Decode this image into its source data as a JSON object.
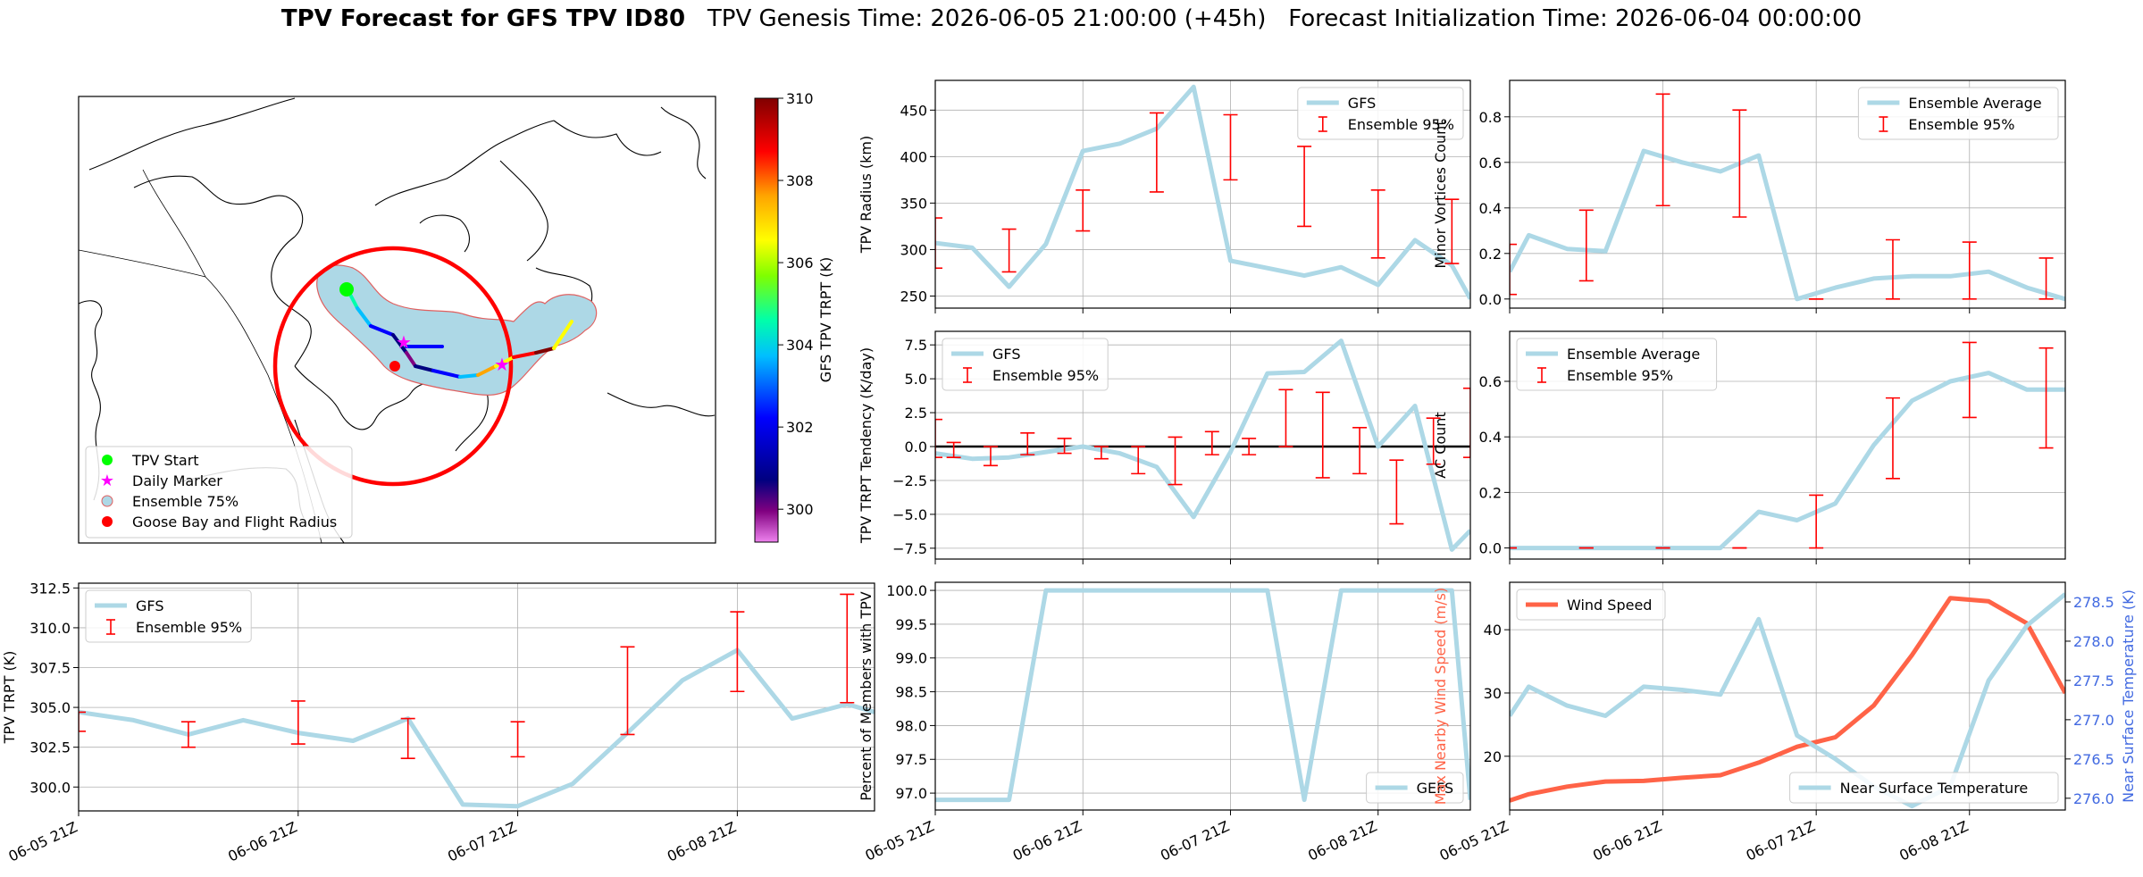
{
  "title": {
    "bold": "TPV Forecast for GFS TPV ID80",
    "genesis": "TPV Genesis Time: 2026-06-05 21:00:00 (+45h)",
    "init": "Forecast Initialization Time: 2026-06-04 00:00:00"
  },
  "colors": {
    "main_line": "#add8e6",
    "error_bar": "#ff0000",
    "wind": "#ff6347",
    "temp_axis": "#4169e1",
    "ensemble_fill": "#add8e6",
    "circle": "#ff0000",
    "tpv_start": "#00ff00",
    "daily_marker": "#ff00ff"
  },
  "map": {
    "legend": [
      "TPV Start",
      "Daily Marker",
      "Ensemble 75%",
      "Goose Bay and Flight Radius"
    ],
    "colorbar": {
      "label": "GFS TPV TRPT (K)",
      "ticks": [
        "310",
        "308",
        "306",
        "304",
        "302",
        "300"
      ],
      "range": [
        299.2,
        310.0
      ],
      "colormap": "jet"
    }
  },
  "chart_data": [
    {
      "id": "trpt",
      "type": "line",
      "ylabel": "TPV TRPT (K)",
      "xlim": [
        0,
        87
      ],
      "ylim": [
        298.5,
        312.8
      ],
      "yticks": [
        300.0,
        302.5,
        305.0,
        307.5,
        310.0,
        312.5
      ],
      "ytick_labels": [
        "300.0",
        "302.5",
        "305.0",
        "307.5",
        "310.0",
        "312.5"
      ],
      "xticks": [
        0,
        24,
        48,
        72
      ],
      "xtick_labels": [
        "06-05 21Z",
        "06-06 21Z",
        "06-07 21Z",
        "06-08 21Z"
      ],
      "legend_loc": "upper-left",
      "series": [
        {
          "name": "GFS",
          "kind": "line",
          "x": [
            0,
            6,
            12,
            18,
            24,
            30,
            36,
            42,
            48,
            54,
            60,
            66,
            72,
            78,
            84,
            87
          ],
          "y": [
            304.7,
            304.2,
            303.3,
            304.2,
            303.4,
            302.9,
            304.3,
            298.9,
            298.8,
            300.2,
            303.4,
            306.7,
            308.6,
            304.3,
            305.2,
            304.7
          ]
        },
        {
          "name": "Ensemble 95%",
          "kind": "errorbar",
          "x": [
            0,
            12,
            24,
            36,
            48,
            60,
            72,
            84
          ],
          "low": [
            303.5,
            302.5,
            302.7,
            301.8,
            301.9,
            303.3,
            306.0,
            305.3
          ],
          "high": [
            304.7,
            304.1,
            305.4,
            304.3,
            304.1,
            308.8,
            311.0,
            312.1
          ]
        }
      ]
    },
    {
      "id": "radius",
      "type": "line",
      "ylabel": "TPV Radius (km)",
      "xlim": [
        0,
        87
      ],
      "ylim": [
        237,
        482
      ],
      "yticks": [
        250,
        300,
        350,
        400,
        450
      ],
      "ytick_labels": [
        "250",
        "300",
        "350",
        "400",
        "450"
      ],
      "xticks": [
        0,
        24,
        48,
        72
      ],
      "legend_loc": "upper-right",
      "series": [
        {
          "name": "GFS",
          "kind": "line",
          "x": [
            0,
            6,
            12,
            18,
            24,
            30,
            36,
            42,
            48,
            54,
            60,
            66,
            72,
            78,
            84,
            87
          ],
          "y": [
            307,
            302,
            260,
            306,
            406,
            414,
            430,
            475,
            288,
            280,
            272,
            281,
            262,
            310,
            283,
            247
          ]
        },
        {
          "name": "Ensemble 95%",
          "kind": "errorbar",
          "x": [
            0,
            12,
            24,
            36,
            48,
            60,
            72,
            84
          ],
          "low": [
            280,
            276,
            320,
            362,
            375,
            325,
            291,
            285
          ],
          "high": [
            334,
            322,
            364,
            447,
            445,
            411,
            364,
            354
          ]
        }
      ]
    },
    {
      "id": "tendency",
      "type": "line",
      "ylabel": "TPV TRPT Tendency (K/day)",
      "xlim": [
        0,
        87
      ],
      "ylim": [
        -8.3,
        8.5
      ],
      "yticks": [
        -7.5,
        -5.0,
        -2.5,
        0.0,
        2.5,
        5.0,
        7.5
      ],
      "ytick_labels": [
        "−7.5",
        "−5.0",
        "−2.5",
        "0.0",
        "2.5",
        "5.0",
        "7.5"
      ],
      "xticks": [
        0,
        24,
        48,
        72
      ],
      "hline": 0,
      "legend_loc": "upper-left",
      "series": [
        {
          "name": "GFS",
          "kind": "line",
          "x": [
            0,
            6,
            12,
            18,
            24,
            30,
            36,
            42,
            48,
            54,
            60,
            66,
            72,
            78,
            84,
            87
          ],
          "y": [
            -0.5,
            -0.9,
            -0.8,
            -0.4,
            0.0,
            -0.5,
            -1.5,
            -5.2,
            -0.4,
            5.4,
            5.5,
            7.8,
            0.0,
            3.0,
            -7.6,
            -6.2
          ]
        },
        {
          "name": "Ensemble 95%",
          "kind": "errorbar",
          "x": [
            0,
            3,
            9,
            15,
            21,
            27,
            33,
            39,
            45,
            51,
            57,
            63,
            69,
            75,
            81,
            87
          ],
          "low": [
            -0.8,
            -0.8,
            -1.4,
            -0.6,
            -0.5,
            -0.9,
            -2.0,
            -2.8,
            -0.6,
            -0.6,
            0.0,
            -2.3,
            -2.0,
            -5.7,
            -1.3,
            -0.8
          ],
          "high": [
            2.0,
            0.3,
            0.0,
            1.0,
            0.6,
            0.0,
            0.0,
            0.7,
            1.1,
            0.6,
            4.2,
            4.0,
            1.4,
            -1.0,
            2.1,
            4.3
          ]
        }
      ]
    },
    {
      "id": "members",
      "type": "line",
      "ylabel": "Percent of Members with TPV",
      "xlim": [
        0,
        87
      ],
      "ylim": [
        96.75,
        100.12
      ],
      "yticks": [
        97.0,
        97.5,
        98.0,
        98.5,
        99.0,
        99.5,
        100.0
      ],
      "ytick_labels": [
        "97.0",
        "97.5",
        "98.0",
        "98.5",
        "99.0",
        "99.5",
        "100.0"
      ],
      "xticks": [
        0,
        24,
        48,
        72
      ],
      "xtick_labels": [
        "06-05 21Z",
        "06-06 21Z",
        "06-07 21Z",
        "06-08 21Z"
      ],
      "legend_loc": "lower-right",
      "series": [
        {
          "name": "GEFS",
          "kind": "line",
          "x": [
            0,
            6,
            12,
            18,
            24,
            30,
            36,
            42,
            48,
            54,
            60,
            66,
            72,
            78,
            84,
            87
          ],
          "y": [
            96.9,
            96.9,
            96.9,
            100.0,
            100.0,
            100.0,
            100.0,
            100.0,
            100.0,
            100.0,
            96.9,
            100.0,
            100.0,
            100.0,
            100.0,
            96.9
          ]
        }
      ]
    },
    {
      "id": "minor",
      "type": "line",
      "ylabel": "Minor Vortices Count",
      "xlim": [
        0,
        87
      ],
      "ylim": [
        -0.04,
        0.96
      ],
      "yticks": [
        0.0,
        0.2,
        0.4,
        0.6,
        0.8
      ],
      "ytick_labels": [
        "0.0",
        "0.2",
        "0.4",
        "0.6",
        "0.8"
      ],
      "xticks": [
        0,
        24,
        48,
        72
      ],
      "legend_loc": "upper-right",
      "series": [
        {
          "name": "Ensemble Average",
          "kind": "line",
          "x": [
            0,
            3,
            9,
            15,
            21,
            27,
            33,
            39,
            45,
            51,
            57,
            63,
            69,
            75,
            81,
            87
          ],
          "y": [
            0.12,
            0.28,
            0.22,
            0.21,
            0.65,
            0.6,
            0.56,
            0.63,
            0.0,
            0.05,
            0.09,
            0.1,
            0.1,
            0.12,
            0.05,
            0.0
          ]
        },
        {
          "name": "Ensemble 95%",
          "kind": "errorbar",
          "x": [
            0,
            12,
            24,
            36,
            48,
            60,
            72,
            84
          ],
          "low": [
            0.02,
            0.08,
            0.41,
            0.36,
            0.0,
            0.0,
            0.0,
            0.0
          ],
          "high": [
            0.24,
            0.39,
            0.9,
            0.83,
            0.0,
            0.26,
            0.25,
            0.18
          ]
        }
      ]
    },
    {
      "id": "ac",
      "type": "line",
      "ylabel": "AC Count",
      "xlim": [
        0,
        87
      ],
      "ylim": [
        -0.04,
        0.78
      ],
      "yticks": [
        0.0,
        0.2,
        0.4,
        0.6
      ],
      "ytick_labels": [
        "0.0",
        "0.2",
        "0.4",
        "0.6"
      ],
      "xticks": [
        0,
        24,
        48,
        72
      ],
      "legend_loc": "upper-left",
      "series": [
        {
          "name": "Ensemble Average",
          "kind": "line",
          "x": [
            0,
            3,
            9,
            15,
            21,
            27,
            33,
            39,
            45,
            51,
            57,
            63,
            69,
            75,
            81,
            87
          ],
          "y": [
            0.0,
            0.0,
            0.0,
            0.0,
            0.0,
            0.0,
            0.0,
            0.13,
            0.1,
            0.16,
            0.37,
            0.53,
            0.6,
            0.63,
            0.57,
            0.57
          ]
        },
        {
          "name": "Ensemble 95%",
          "kind": "errorbar",
          "x": [
            0,
            12,
            24,
            36,
            48,
            60,
            72,
            84
          ],
          "low": [
            0.0,
            0.0,
            0.0,
            0.0,
            0.0,
            0.25,
            0.47,
            0.36
          ],
          "high": [
            0.0,
            0.0,
            0.0,
            0.0,
            0.19,
            0.54,
            0.74,
            0.72
          ]
        }
      ]
    },
    {
      "id": "wind_temp",
      "type": "line",
      "ylabel": "Max Nearby Wind Speed (m/s)",
      "y2label": "Near Surface Temperature (K)",
      "xlim": [
        0,
        87
      ],
      "ylim": [
        11.5,
        47.5
      ],
      "yticks": [
        20,
        30,
        40
      ],
      "ytick_labels": [
        "20",
        "30",
        "40"
      ],
      "y2lim": [
        275.85,
        278.75
      ],
      "y2ticks": [
        276.0,
        276.5,
        277.0,
        277.5,
        278.0,
        278.5
      ],
      "y2tick_labels": [
        "276.0",
        "276.5",
        "277.0",
        "277.5",
        "278.0",
        "278.5"
      ],
      "xticks": [
        0,
        24,
        48,
        72
      ],
      "xtick_labels": [
        "06-05 21Z",
        "06-06 21Z",
        "06-07 21Z",
        "06-08 21Z"
      ],
      "series": [
        {
          "name": "Wind Speed",
          "kind": "line",
          "axis": "left",
          "x": [
            0,
            3,
            9,
            15,
            21,
            27,
            33,
            39,
            45,
            51,
            57,
            63,
            69,
            75,
            81,
            87
          ],
          "y": [
            13.0,
            14.0,
            15.2,
            16.0,
            16.1,
            16.6,
            17.0,
            19.0,
            21.5,
            23.0,
            28.0,
            36.0,
            45.0,
            44.5,
            41.0,
            30.0
          ],
          "legend_loc": "upper-left"
        },
        {
          "name": "Near Surface Temperature",
          "kind": "line",
          "axis": "right",
          "x": [
            0,
            3,
            9,
            15,
            21,
            27,
            33,
            39,
            45,
            51,
            57,
            63,
            69,
            75,
            81,
            87
          ],
          "y": [
            277.05,
            277.42,
            277.18,
            277.05,
            277.42,
            277.38,
            277.32,
            278.28,
            276.8,
            276.5,
            276.15,
            275.9,
            276.15,
            277.5,
            278.2,
            278.6
          ],
          "legend_loc": "lower-right"
        }
      ]
    }
  ]
}
